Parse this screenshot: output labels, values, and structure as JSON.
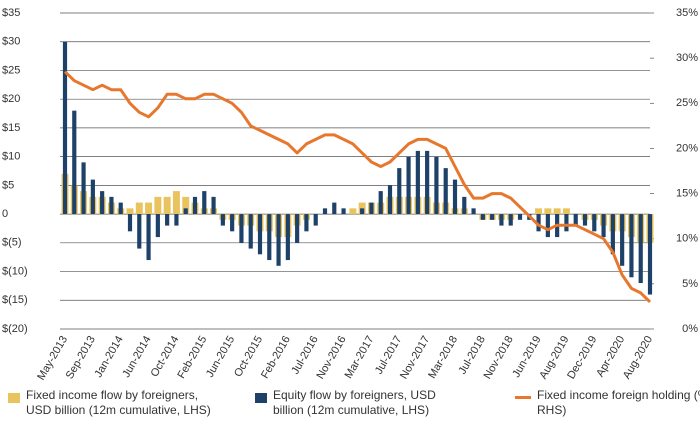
{
  "chart_data": {
    "type": "bar",
    "categories": [
      "May-2013",
      null,
      null,
      "Sep-2013",
      null,
      null,
      "Jan-2014",
      null,
      null,
      "Jun-2014",
      null,
      null,
      "Oct-2014",
      null,
      null,
      "Feb-2015",
      null,
      null,
      "Jun-2015",
      null,
      null,
      "Oct-2015",
      null,
      null,
      "Feb-2016",
      null,
      null,
      "Jul-2016",
      null,
      null,
      "Nov-2016",
      null,
      null,
      "Mar-2017",
      null,
      null,
      "Jul-2017",
      null,
      null,
      "Nov-2017",
      null,
      null,
      "Mar-2018",
      null,
      null,
      "Jul-2018",
      null,
      null,
      "Nov-2018",
      null,
      null,
      "Jun-2019",
      null,
      null,
      "Aug-2019",
      null,
      null,
      "Dec-2019",
      null,
      null,
      "Apr-2020",
      null,
      null,
      "Aug-2020"
    ],
    "series": [
      {
        "name": "Fixed income flow by foreigners, USD billion (12m cumulative, LHS)",
        "type": "bar",
        "color": "#e9c35e",
        "values": [
          7,
          5,
          4,
          3,
          3,
          2,
          1,
          1,
          2,
          2,
          3,
          3,
          4,
          3,
          2,
          1,
          1,
          -1,
          -1,
          -2,
          -2,
          -3,
          -3,
          -4,
          -4,
          -2,
          -1,
          0,
          0,
          0,
          0,
          1,
          2,
          2,
          2,
          3,
          3,
          3,
          3,
          3,
          2,
          2,
          1,
          1,
          0,
          -1,
          -1,
          -1,
          -1,
          0,
          0,
          1,
          1,
          1,
          1,
          0,
          -1,
          -1,
          -2,
          -3,
          -3,
          -4,
          -5,
          -5
        ]
      },
      {
        "name": "Equity flow by foreigners, USD billion (12m cumulative, LHS)",
        "type": "bar",
        "color": "#1d4168",
        "values": [
          30,
          18,
          9,
          6,
          4,
          3,
          2,
          -3,
          -6,
          -8,
          -4,
          -2,
          -2,
          1,
          3,
          4,
          3,
          -2,
          -3,
          -5,
          -6,
          -7,
          -8,
          -9,
          -8,
          -5,
          -3,
          -2,
          1,
          2,
          1,
          0,
          1,
          2,
          4,
          5,
          8,
          10,
          11,
          11,
          10,
          8,
          6,
          3,
          1,
          -1,
          -1,
          -2,
          -2,
          -1,
          -1,
          -3,
          -4,
          -4,
          -3,
          -2,
          -2,
          -3,
          -4,
          -7,
          -9,
          -11,
          -12,
          -14
        ]
      },
      {
        "name": "Fixed income foreign holding (%, RHS)",
        "type": "line",
        "axis": "y2",
        "color": "#e8772e",
        "values": [
          28.5,
          27.5,
          27,
          26.5,
          27,
          26.5,
          26.5,
          25,
          24,
          23.5,
          24.5,
          26,
          26,
          25.5,
          25.5,
          26,
          26,
          25.5,
          25,
          24,
          22.5,
          22,
          21.5,
          21,
          20.5,
          19.5,
          20.5,
          21,
          21.5,
          21.5,
          21,
          20.5,
          19.5,
          18.5,
          18,
          18.5,
          19.5,
          20.5,
          21,
          21,
          20.5,
          20,
          18,
          16,
          14.5,
          14.5,
          15,
          15,
          14.5,
          13.5,
          12.5,
          11.5,
          11,
          11.5,
          11.5,
          11.5,
          11,
          10.5,
          10,
          8.5,
          6,
          4.5,
          4,
          3
        ]
      }
    ],
    "ylim": [
      -20,
      35
    ],
    "yticks": [
      {
        "value": 35,
        "label": "$35"
      },
      {
        "value": 30,
        "label": "$30"
      },
      {
        "value": 25,
        "label": "$25"
      },
      {
        "value": 20,
        "label": "$20"
      },
      {
        "value": 15,
        "label": "$15"
      },
      {
        "value": 10,
        "label": "$10"
      },
      {
        "value": 5,
        "label": "$5"
      },
      0,
      {
        "value": -5,
        "label": "$(5)"
      },
      {
        "value": -10,
        "label": "$(10)"
      },
      {
        "value": -15,
        "label": "$(15)"
      },
      {
        "value": -20,
        "label": "$(20)"
      }
    ],
    "y2lim": [
      0,
      35
    ],
    "y2ticks": [
      {
        "value": 35,
        "label": "35%"
      },
      {
        "value": 30,
        "label": "30%"
      },
      {
        "value": 25,
        "label": "25%"
      },
      {
        "value": 20,
        "label": "20%"
      },
      {
        "value": 15,
        "label": "15%"
      },
      {
        "value": 10,
        "label": "10%"
      },
      {
        "value": 5,
        "label": "5%"
      },
      {
        "value": 0,
        "label": "0%"
      }
    ],
    "grid": true,
    "legend": "bottom"
  }
}
